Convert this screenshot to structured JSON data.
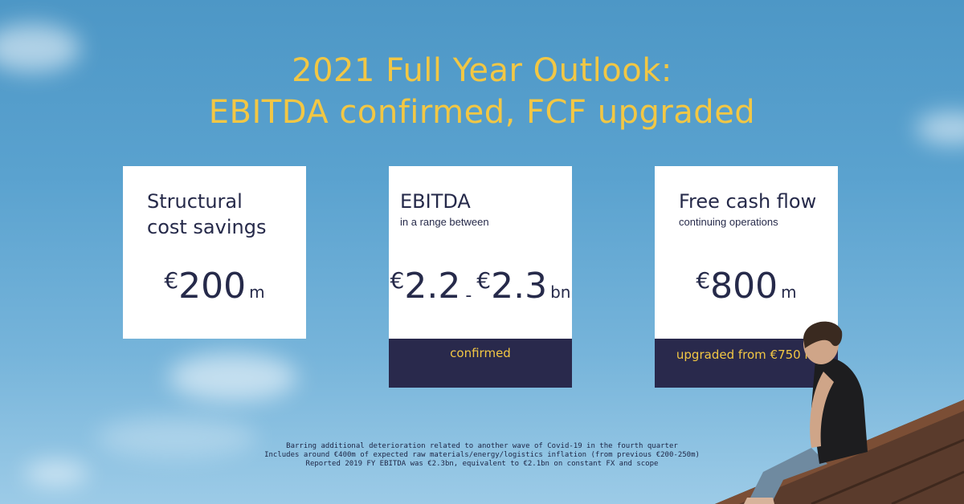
{
  "title": {
    "line1": "2021 Full Year Outlook:",
    "line2": "EBITDA confirmed, FCF upgraded"
  },
  "cards": [
    {
      "heading_line1": "Structural",
      "heading_line2": "cost savings",
      "currency": "€",
      "value": "200",
      "unit": "m"
    },
    {
      "heading": "EBITDA",
      "subtitle": "in a range between",
      "currency": "€",
      "value_low": "2.2",
      "separator": "-",
      "currency2": "€",
      "value_high": "2.3",
      "unit": "bn",
      "status": "confirmed"
    },
    {
      "heading": "Free cash flow",
      "subtitle": "continuing operations",
      "currency": "€",
      "value": "800",
      "unit": "m",
      "status": "upgraded from €750 m"
    }
  ],
  "footnotes": [
    "Barring additional deterioration related to another wave of Covid-19 in the fourth quarter",
    "Includes around €400m of expected raw materials/energy/logistics inflation (from previous €200-250m)",
    "Reported 2019 FY EBITDA was €2.3bn, equivalent to €2.1bn on constant FX and scope"
  ],
  "colors": {
    "sky": "#5aa2cf",
    "accent": "#f2c744",
    "navy": "#29294c"
  }
}
